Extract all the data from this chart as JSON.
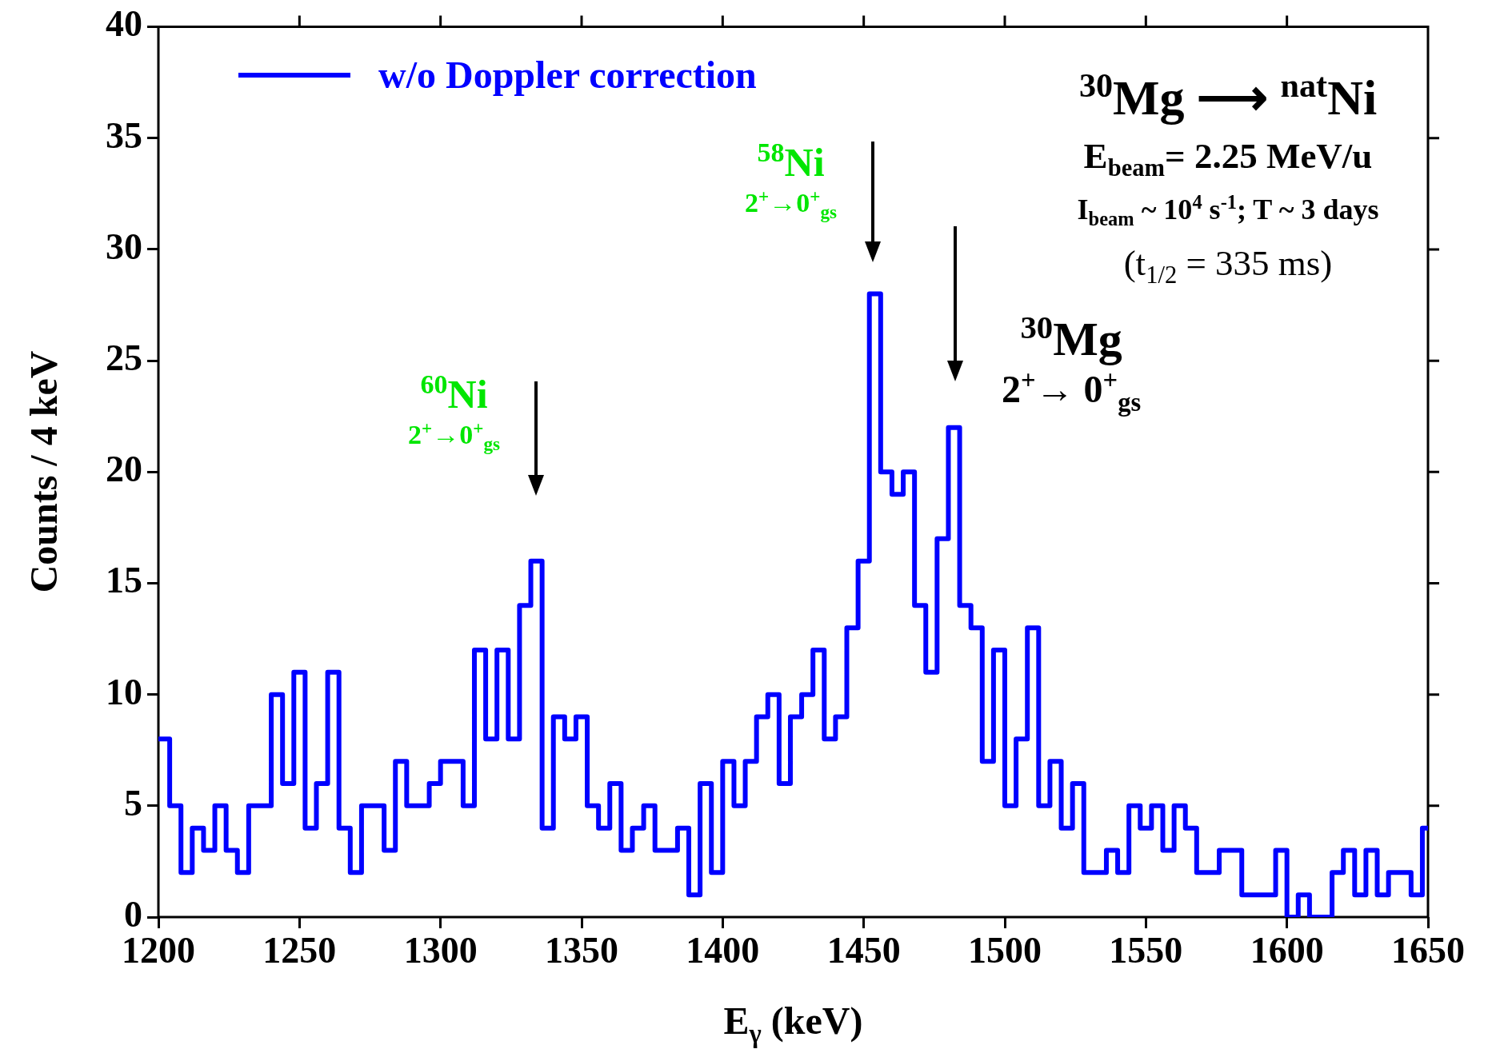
{
  "chart_data": {
    "type": "histogram",
    "xlabel": "E$_{γ}$ (keV)",
    "ylabel": "Counts / 4 keV",
    "bins": [
      1200,
      1204,
      1208,
      1212,
      1216,
      1220,
      1224,
      1228,
      1232,
      1236,
      1240,
      1244,
      1248,
      1252,
      1256,
      1260,
      1264,
      1268,
      1272,
      1276,
      1280,
      1284,
      1288,
      1292,
      1296,
      1300,
      1304,
      1308,
      1312,
      1316,
      1320,
      1324,
      1328,
      1332,
      1336,
      1340,
      1344,
      1348,
      1352,
      1356,
      1360,
      1364,
      1368,
      1372,
      1376,
      1380,
      1384,
      1388,
      1392,
      1396,
      1400,
      1404,
      1408,
      1412,
      1416,
      1420,
      1424,
      1428,
      1432,
      1436,
      1440,
      1444,
      1448,
      1452,
      1456,
      1460,
      1464,
      1468,
      1472,
      1476,
      1480,
      1484,
      1488,
      1492,
      1496,
      1500,
      1504,
      1508,
      1512,
      1516,
      1520,
      1524,
      1528,
      1532,
      1536,
      1540,
      1544,
      1548,
      1552,
      1556,
      1560,
      1564,
      1568,
      1572,
      1576,
      1580,
      1584,
      1588,
      1592,
      1596,
      1600,
      1604,
      1608,
      1612,
      1616,
      1620,
      1624,
      1628,
      1632,
      1636,
      1640,
      1644,
      1648,
      1650
    ],
    "series": [
      {
        "name": "w/o Doppler correction",
        "color": "#0000ff",
        "values": [
          8,
          5,
          2,
          4,
          3,
          5,
          3,
          2,
          5,
          5,
          10,
          6,
          11,
          4,
          6,
          11,
          4,
          2,
          5,
          5,
          3,
          7,
          5,
          5,
          6,
          7,
          7,
          5,
          12,
          8,
          12,
          8,
          14,
          16,
          4,
          9,
          8,
          9,
          5,
          4,
          6,
          3,
          4,
          5,
          3,
          3,
          4,
          1,
          6,
          2,
          7,
          5,
          7,
          9,
          10,
          6,
          9,
          10,
          12,
          8,
          9,
          13,
          16,
          28,
          20,
          19,
          20,
          14,
          11,
          17,
          22,
          14,
          13,
          7,
          12,
          5,
          8,
          13,
          5,
          7,
          4,
          6,
          2,
          2,
          3,
          2,
          5,
          4,
          5,
          3,
          5,
          4,
          2,
          2,
          3,
          3,
          1,
          1,
          1,
          3,
          0,
          1,
          0,
          0,
          2,
          3,
          1,
          3,
          1,
          2,
          2,
          1,
          4
        ]
      }
    ],
    "xlim": [
      1200,
      1650
    ],
    "xticks": [
      1200,
      1250,
      1300,
      1350,
      1400,
      1450,
      1500,
      1550,
      1600,
      1650
    ],
    "ylim": [
      0,
      40
    ],
    "yticks": [
      0,
      5,
      10,
      15,
      20,
      25,
      30,
      35,
      40
    ],
    "legend": "top left",
    "annotations": [
      "$^{60}$Ni\n2$^{+}$→0$^{+}$$_{gs}$",
      "$^{58}$Ni\n2$^{+}$→0$^{+}$$_{gs}$",
      "$^{30}$Mg\n2$^{+}$→ 0$^{+}$$_{gs}$",
      "$^{30}$Mg ⟶ $^{nat}$Ni",
      "E$_{beam}$= 2.25 MeV/u",
      "I$_{beam}$ ~ 10$^{4}$ s$^{-1}$; T ~ 3 days",
      "(t$_{1/2}$ = 335 ms)"
    ]
  }
}
